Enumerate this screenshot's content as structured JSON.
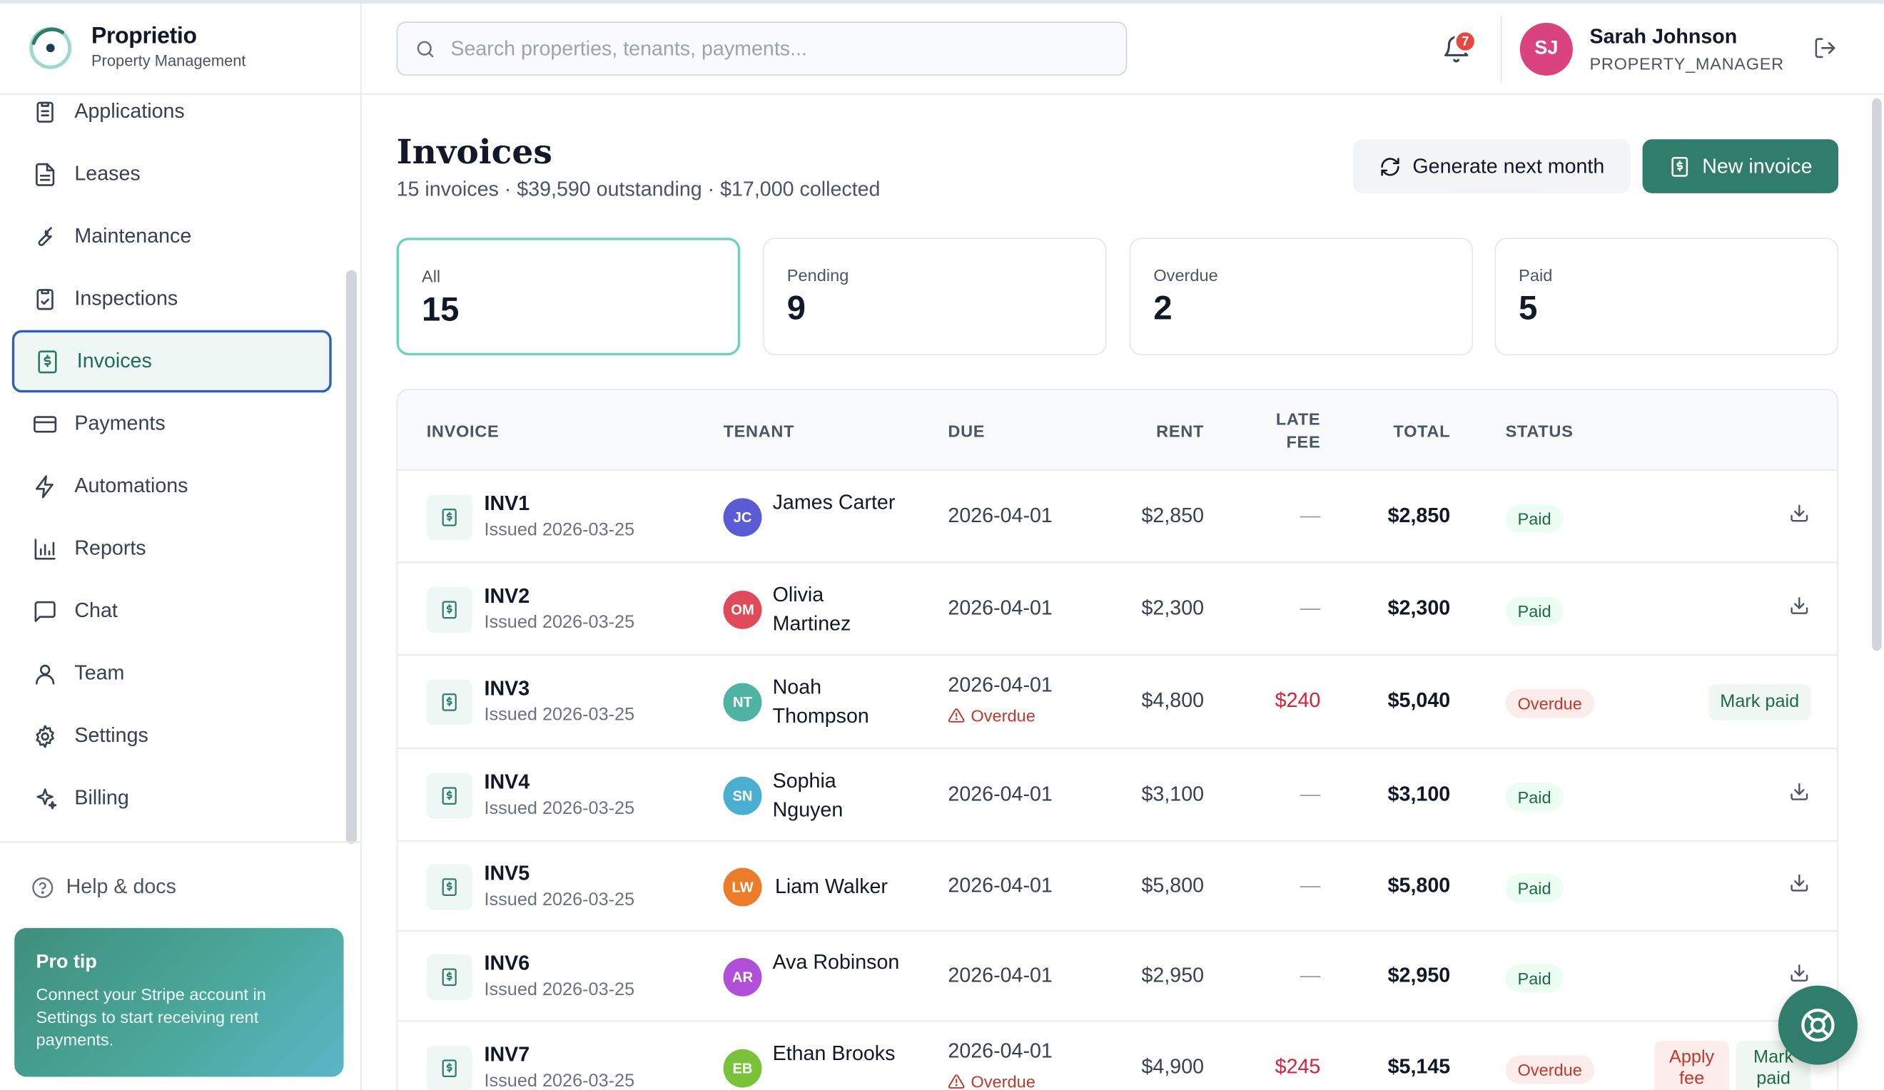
{
  "brand": {
    "name": "Proprietio",
    "subtitle": "Property Management"
  },
  "sidebar": {
    "items": [
      {
        "label": "Applications",
        "icon": "clipboard-list-icon"
      },
      {
        "label": "Leases",
        "icon": "file-text-icon"
      },
      {
        "label": "Maintenance",
        "icon": "wrench-icon"
      },
      {
        "label": "Inspections",
        "icon": "clipboard-check-icon"
      },
      {
        "label": "Invoices",
        "icon": "invoice-icon",
        "active": true
      },
      {
        "label": "Payments",
        "icon": "credit-card-icon"
      },
      {
        "label": "Automations",
        "icon": "zap-icon"
      },
      {
        "label": "Reports",
        "icon": "bar-chart-icon"
      },
      {
        "label": "Chat",
        "icon": "message-icon"
      },
      {
        "label": "Team",
        "icon": "user-icon"
      },
      {
        "label": "Settings",
        "icon": "gear-icon"
      },
      {
        "label": "Billing",
        "icon": "sparkles-icon"
      }
    ],
    "help_label": "Help & docs",
    "protip": {
      "title": "Pro tip",
      "body": "Connect your Stripe account in Settings to start receiving rent payments."
    }
  },
  "header": {
    "search_placeholder": "Search properties, tenants, payments...",
    "notification_count": "7",
    "user": {
      "initials": "SJ",
      "name": "Sarah Johnson",
      "role": "PROPERTY_MANAGER",
      "avatar_color": "#d9437e"
    }
  },
  "page": {
    "title": "Invoices",
    "subtitle": "15 invoices · $39,590 outstanding · $17,000 collected",
    "generate_label": "Generate next month",
    "new_invoice_label": "New invoice"
  },
  "stats": [
    {
      "label": "All",
      "value": "15",
      "active": true
    },
    {
      "label": "Pending",
      "value": "9"
    },
    {
      "label": "Overdue",
      "value": "2"
    },
    {
      "label": "Paid",
      "value": "5"
    }
  ],
  "table": {
    "headers": {
      "invoice": "INVOICE",
      "tenant": "TENANT",
      "due": "DUE",
      "rent": "RENT",
      "late_fee_1": "LATE",
      "late_fee_2": "FEE",
      "total": "TOTAL",
      "status": "STATUS"
    },
    "rows": [
      {
        "id": "INV1",
        "issued": "Issued 2026-03-25",
        "initials": "JC",
        "avatar_color": "#5b5bd6",
        "tenant": "James Carter",
        "due": "2026-04-01",
        "overdue_note": "",
        "rent": "$2,850",
        "late_fee": "—",
        "total": "$2,850",
        "status": "Paid",
        "actions": []
      },
      {
        "id": "INV2",
        "issued": "Issued 2026-03-25",
        "initials": "OM",
        "avatar_color": "#e04b5a",
        "tenant": "Olivia Martinez",
        "due": "2026-04-01",
        "overdue_note": "",
        "rent": "$2,300",
        "late_fee": "—",
        "total": "$2,300",
        "status": "Paid",
        "actions": []
      },
      {
        "id": "INV3",
        "issued": "Issued 2026-03-25",
        "initials": "NT",
        "avatar_color": "#4fb3a3",
        "tenant": "Noah Thompson",
        "due": "2026-04-01",
        "overdue_note": "Overdue",
        "rent": "$4,800",
        "late_fee": "$240",
        "total": "$5,040",
        "status": "Overdue",
        "actions": [
          "Mark paid"
        ]
      },
      {
        "id": "INV4",
        "issued": "Issued 2026-03-25",
        "initials": "SN",
        "avatar_color": "#4aaed0",
        "tenant": "Sophia Nguyen",
        "due": "2026-04-01",
        "overdue_note": "",
        "rent": "$3,100",
        "late_fee": "—",
        "total": "$3,100",
        "status": "Paid",
        "actions": []
      },
      {
        "id": "INV5",
        "issued": "Issued 2026-03-25",
        "initials": "LW",
        "avatar_color": "#ec7b2a",
        "tenant": "Liam Walker",
        "due": "2026-04-01",
        "overdue_note": "",
        "rent": "$5,800",
        "late_fee": "—",
        "total": "$5,800",
        "status": "Paid",
        "actions": []
      },
      {
        "id": "INV6",
        "issued": "Issued 2026-03-25",
        "initials": "AR",
        "avatar_color": "#b04fd8",
        "tenant": "Ava Robinson",
        "due": "2026-04-01",
        "overdue_note": "",
        "rent": "$2,950",
        "late_fee": "—",
        "total": "$2,950",
        "status": "Paid",
        "actions": []
      },
      {
        "id": "INV7",
        "issued": "Issued 2026-03-25",
        "initials": "EB",
        "avatar_color": "#7ac23a",
        "tenant": "Ethan Brooks",
        "due": "2026-04-01",
        "overdue_note": "Overdue",
        "rent": "$4,900",
        "late_fee": "$245",
        "total": "$5,145",
        "status": "Overdue",
        "actions": [
          "Apply fee",
          "Mark paid"
        ]
      }
    ]
  }
}
